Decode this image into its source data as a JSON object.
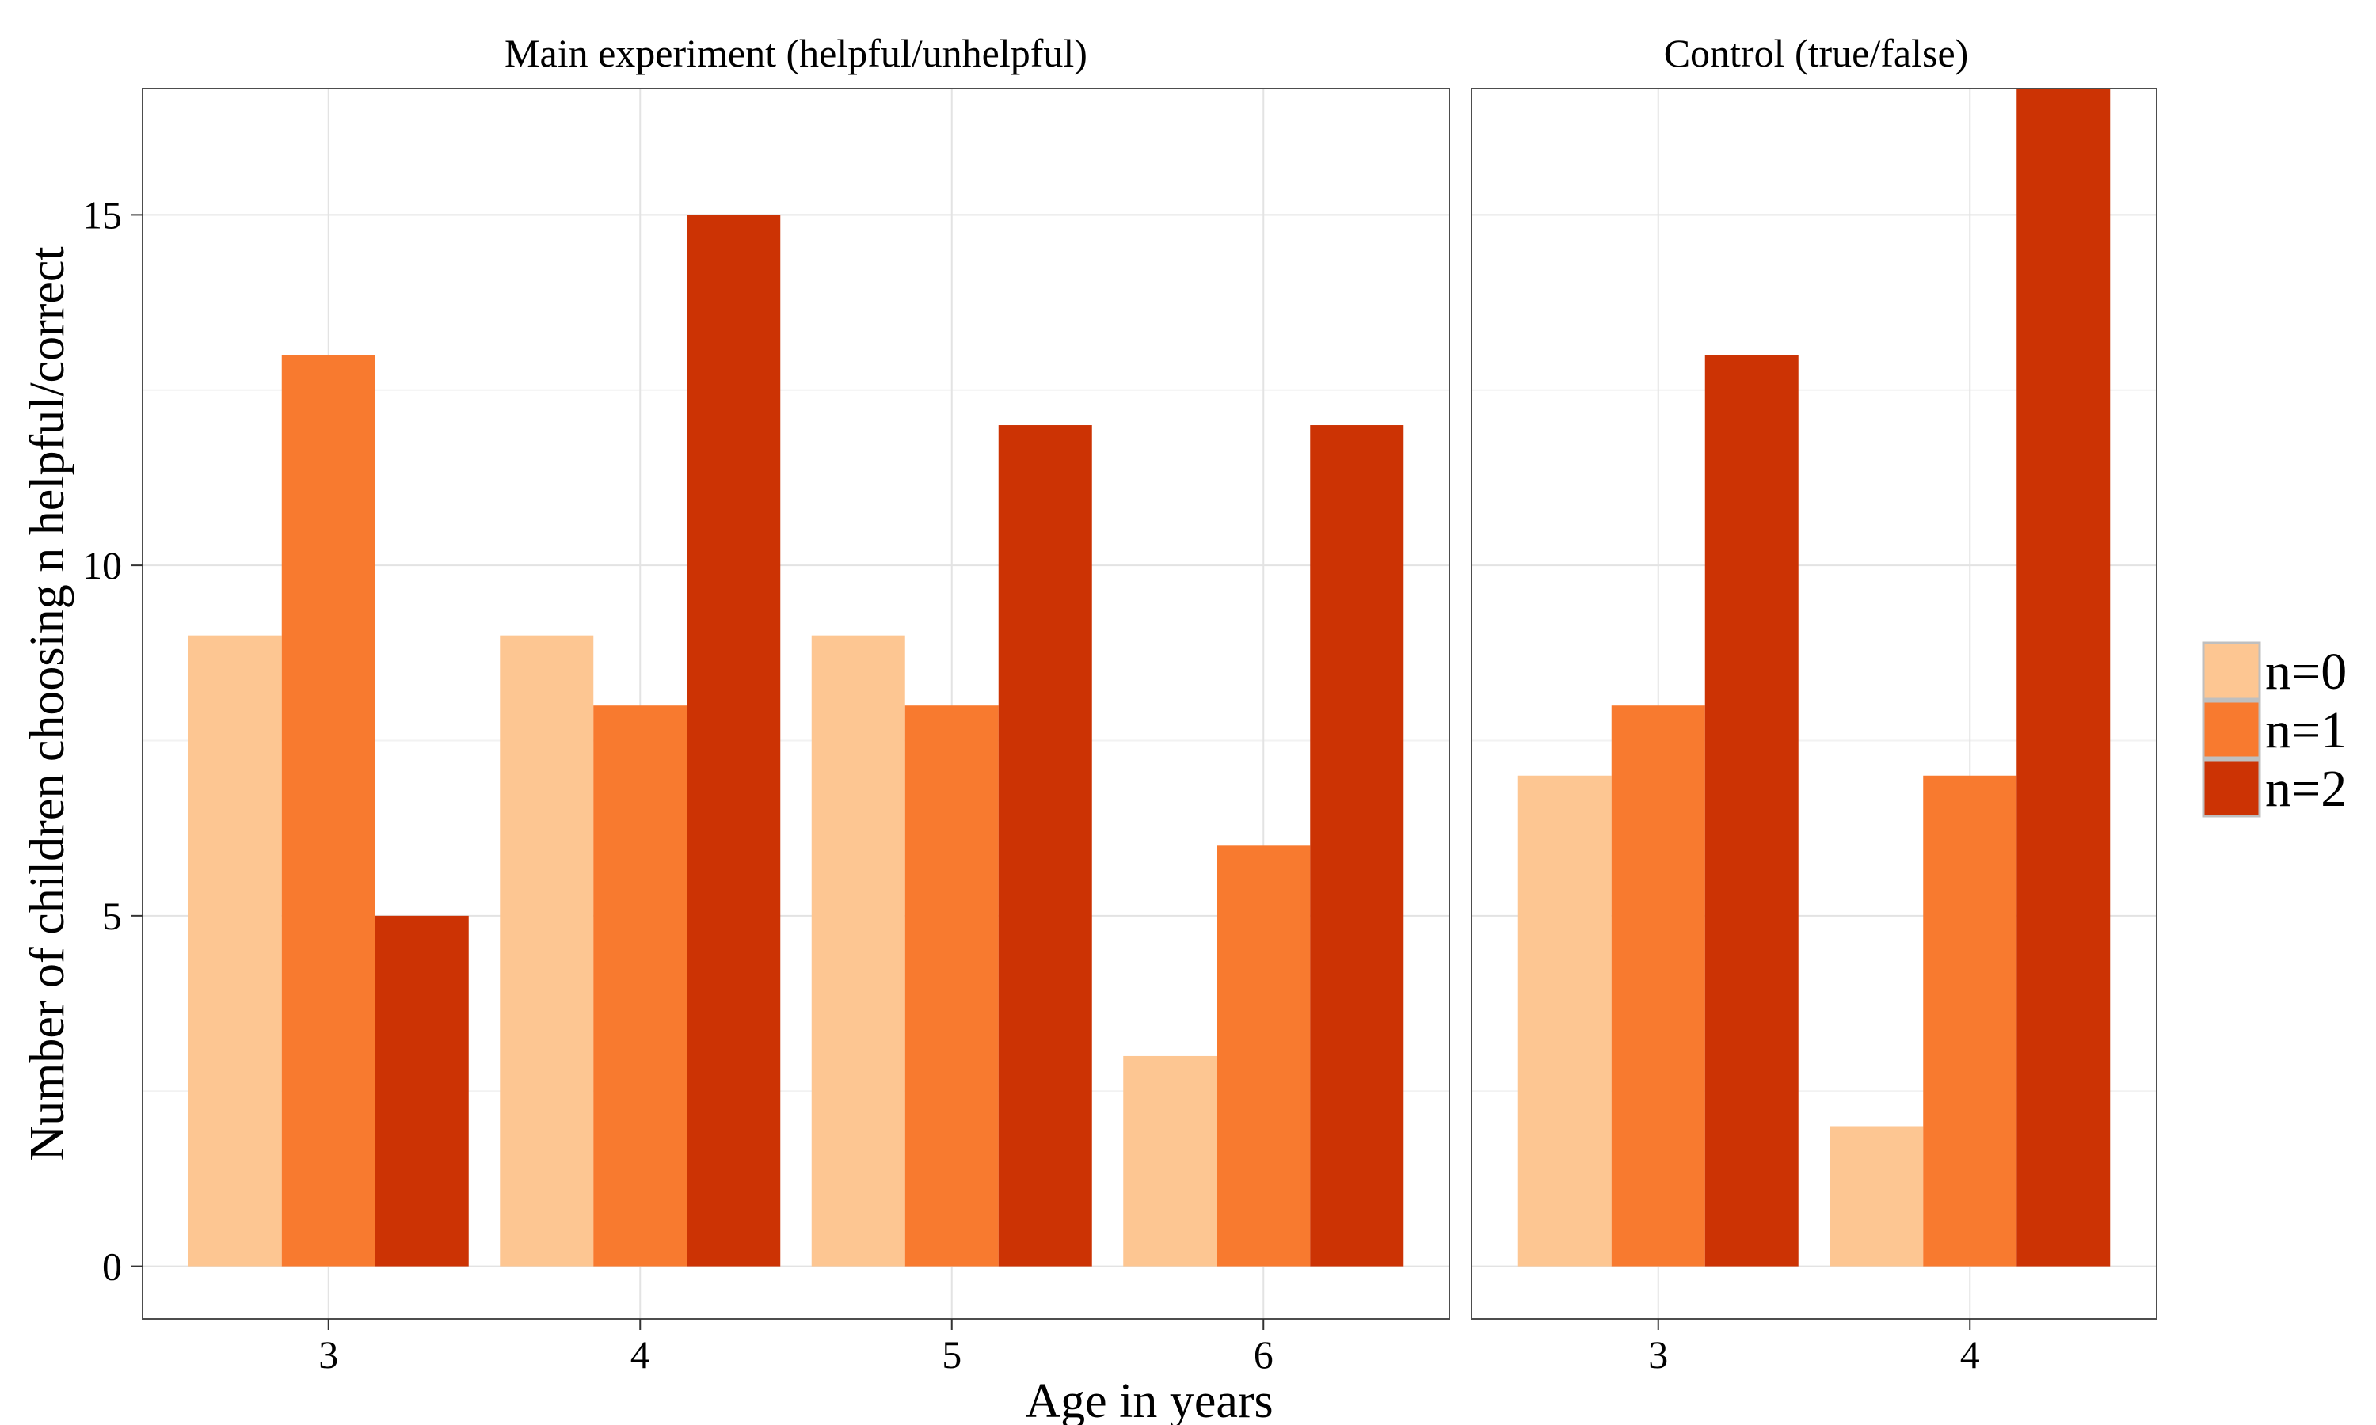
{
  "chart_data": {
    "type": "bar",
    "xlabel": "Age in years",
    "ylabel": "Number of children choosing n helpful/correct",
    "ylim": [
      -0.75,
      16.8
    ],
    "yticks": [
      0,
      5,
      10,
      15
    ],
    "grid": true,
    "legend_position": "right",
    "series_colors": {
      "n=0": "#FDC692",
      "n=1": "#F87A2F",
      "n=2": "#CC3304"
    },
    "panels": [
      {
        "title": "Main experiment (helpful/unhelpful)",
        "categories": [
          "3",
          "4",
          "5",
          "6"
        ],
        "series": [
          {
            "name": "n=0",
            "values": [
              9,
              9,
              9,
              3
            ]
          },
          {
            "name": "n=1",
            "values": [
              13,
              8,
              8,
              6
            ]
          },
          {
            "name": "n=2",
            "values": [
              5,
              15,
              12,
              12
            ]
          }
        ]
      },
      {
        "title": "Control (true/false)",
        "categories": [
          "3",
          "4"
        ],
        "series": [
          {
            "name": "n=0",
            "values": [
              7,
              2
            ]
          },
          {
            "name": "n=1",
            "values": [
              8,
              7
            ]
          },
          {
            "name": "n=2",
            "values": [
              13,
              17
            ]
          }
        ]
      }
    ]
  },
  "legend": {
    "items": [
      {
        "label": "n=0",
        "color": "#FDC692"
      },
      {
        "label": "n=1",
        "color": "#F87A2F"
      },
      {
        "label": "n=2",
        "color": "#CC3304"
      }
    ]
  },
  "colors": {
    "grid_major": "#E3E3E3",
    "grid_minor": "#F2F2F2",
    "panel_border": "#4D4D4D",
    "legend_key_border": "#BFBFBF"
  }
}
